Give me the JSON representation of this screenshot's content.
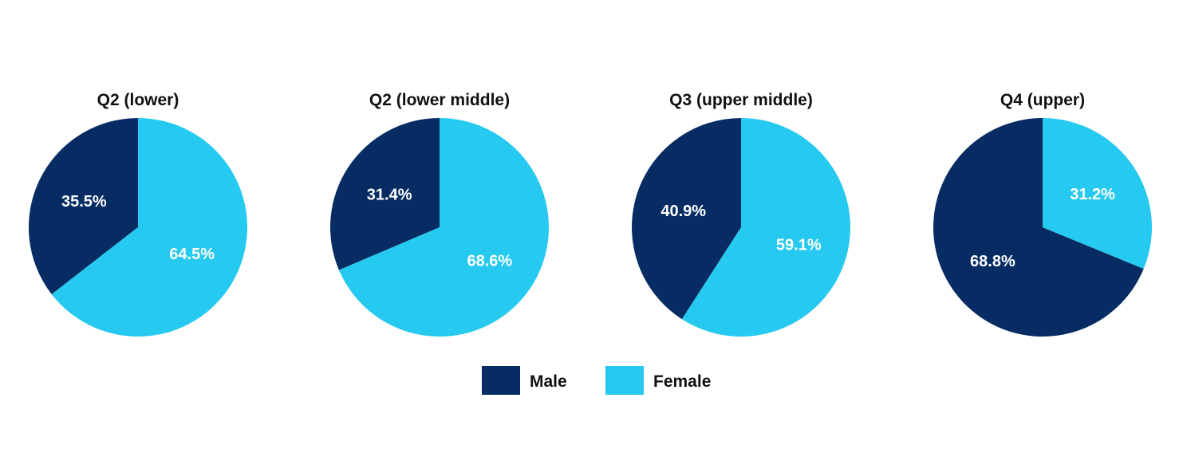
{
  "chart_data": {
    "type": "pie",
    "legend_position": "bottom-center",
    "series_colors": {
      "Male": "#062C63",
      "Female": "#26C9EF"
    },
    "charts": [
      {
        "title": "Q2 (lower)",
        "slices": [
          {
            "category": "Male",
            "value": 35.5,
            "label": "35.5%"
          },
          {
            "category": "Female",
            "value": 64.5,
            "label": "64.5%"
          }
        ]
      },
      {
        "title": "Q2 (lower middle)",
        "slices": [
          {
            "category": "Male",
            "value": 31.4,
            "label": "31.4%"
          },
          {
            "category": "Female",
            "value": 68.6,
            "label": "68.6%"
          }
        ]
      },
      {
        "title": "Q3 (upper middle)",
        "slices": [
          {
            "category": "Male",
            "value": 40.9,
            "label": "40.9%"
          },
          {
            "category": "Female",
            "value": 59.1,
            "label": "59.1%"
          }
        ]
      },
      {
        "title": "Q4 (upper)",
        "slices": [
          {
            "category": "Male",
            "value": 68.8,
            "label": "68.8%"
          },
          {
            "category": "Female",
            "value": 31.2,
            "label": "31.2%"
          }
        ]
      }
    ],
    "legend": [
      {
        "label": "Male",
        "color": "#062C63"
      },
      {
        "label": "Female",
        "color": "#26C9EF"
      }
    ]
  }
}
